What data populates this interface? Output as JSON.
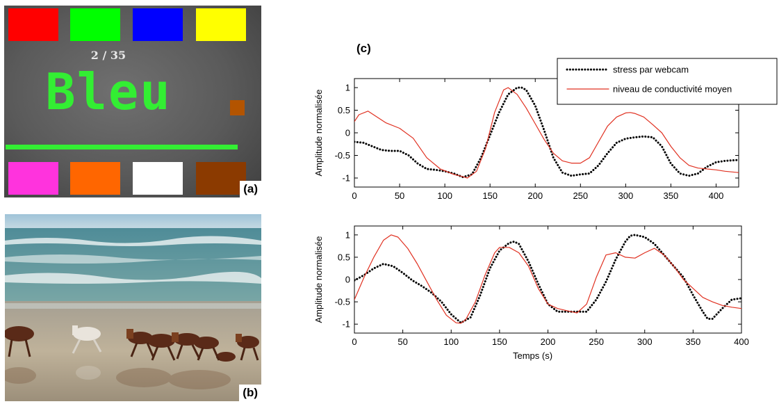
{
  "panel_a": {
    "label": "(a)",
    "counter": "2 / 35",
    "stroop_word": "Bleu",
    "stroop_word_color": "#33ee33",
    "bar_color": "#33ee33",
    "small_square_color": "#b35400",
    "background": "#5e5e5e",
    "top_swatches": [
      "#ff0000",
      "#00ff00",
      "#0000ff",
      "#ffff00"
    ],
    "bottom_swatches": [
      "#ff33dd",
      "#ff6600",
      "#ffffff",
      "#8b3a00"
    ]
  },
  "panel_b": {
    "label": "(b)"
  },
  "panel_c": {
    "label": "(c)"
  },
  "chart_data": [
    {
      "type": "line",
      "title": "",
      "xlabel": "",
      "ylabel": "Amplitude normalisée",
      "xlim": [
        0,
        425
      ],
      "ylim": [
        -1.2,
        1.2
      ],
      "xticks": [
        0,
        50,
        100,
        150,
        200,
        250,
        300,
        350,
        400
      ],
      "yticks": [
        -1,
        -0.5,
        0,
        0.5,
        1
      ],
      "legend_position": "top-right",
      "series": [
        {
          "name": "stress par webcam",
          "color": "#000000",
          "style": "dotted",
          "x": [
            0,
            10,
            20,
            30,
            40,
            50,
            60,
            70,
            80,
            90,
            100,
            110,
            120,
            130,
            140,
            150,
            160,
            170,
            180,
            185,
            190,
            200,
            210,
            220,
            230,
            240,
            250,
            260,
            270,
            280,
            290,
            300,
            310,
            320,
            330,
            340,
            350,
            360,
            370,
            380,
            390,
            400,
            410,
            425
          ],
          "y": [
            -0.2,
            -0.22,
            -0.3,
            -0.38,
            -0.4,
            -0.4,
            -0.5,
            -0.68,
            -0.8,
            -0.82,
            -0.85,
            -0.9,
            -0.98,
            -0.92,
            -0.55,
            -0.05,
            0.45,
            0.85,
            1.0,
            1.0,
            0.95,
            0.6,
            0.05,
            -0.55,
            -0.88,
            -0.95,
            -0.92,
            -0.9,
            -0.72,
            -0.45,
            -0.22,
            -0.13,
            -0.1,
            -0.08,
            -0.1,
            -0.3,
            -0.68,
            -0.9,
            -0.95,
            -0.9,
            -0.75,
            -0.65,
            -0.62,
            -0.6
          ]
        },
        {
          "name": "niveau de conductivité moyen",
          "color": "#e03020",
          "style": "solid",
          "x": [
            0,
            5,
            15,
            25,
            35,
            50,
            65,
            80,
            95,
            110,
            120,
            125,
            135,
            145,
            155,
            165,
            170,
            180,
            190,
            200,
            210,
            220,
            230,
            240,
            250,
            260,
            270,
            280,
            290,
            300,
            305,
            310,
            320,
            330,
            340,
            350,
            360,
            370,
            380,
            390,
            400,
            410,
            425
          ],
          "y": [
            0.25,
            0.4,
            0.48,
            0.35,
            0.22,
            0.1,
            -0.12,
            -0.55,
            -0.8,
            -0.92,
            -0.97,
            -1.0,
            -0.85,
            -0.35,
            0.45,
            0.95,
            1.0,
            0.85,
            0.55,
            0.2,
            -0.15,
            -0.45,
            -0.62,
            -0.67,
            -0.67,
            -0.55,
            -0.2,
            0.15,
            0.35,
            0.44,
            0.45,
            0.43,
            0.35,
            0.18,
            0.0,
            -0.3,
            -0.55,
            -0.72,
            -0.78,
            -0.8,
            -0.82,
            -0.85,
            -0.88
          ]
        }
      ]
    },
    {
      "type": "line",
      "title": "",
      "xlabel": "Temps (s)",
      "ylabel": "Amplitude normalisée",
      "xlim": [
        0,
        400
      ],
      "ylim": [
        -1.2,
        1.2
      ],
      "xticks": [
        0,
        50,
        100,
        150,
        200,
        250,
        300,
        350,
        400
      ],
      "yticks": [
        -1,
        -0.5,
        0,
        0.5,
        1
      ],
      "series": [
        {
          "name": "stress par webcam",
          "color": "#000000",
          "style": "dotted",
          "x": [
            0,
            10,
            20,
            30,
            40,
            50,
            60,
            70,
            80,
            90,
            100,
            110,
            120,
            130,
            140,
            150,
            160,
            165,
            170,
            180,
            190,
            200,
            210,
            220,
            230,
            240,
            250,
            260,
            270,
            280,
            285,
            290,
            300,
            310,
            320,
            330,
            340,
            350,
            360,
            365,
            370,
            380,
            390,
            400
          ],
          "y": [
            -0.02,
            0.1,
            0.25,
            0.35,
            0.3,
            0.15,
            -0.02,
            -0.15,
            -0.3,
            -0.5,
            -0.78,
            -0.97,
            -0.85,
            -0.35,
            0.25,
            0.65,
            0.82,
            0.85,
            0.8,
            0.4,
            -0.1,
            -0.55,
            -0.72,
            -0.72,
            -0.72,
            -0.72,
            -0.45,
            -0.05,
            0.45,
            0.85,
            0.98,
            1.0,
            0.95,
            0.8,
            0.55,
            0.3,
            0.05,
            -0.35,
            -0.72,
            -0.88,
            -0.88,
            -0.65,
            -0.45,
            -0.42
          ]
        },
        {
          "name": "niveau de conductivité moyen",
          "color": "#e03020",
          "style": "solid",
          "x": [
            0,
            10,
            20,
            30,
            38,
            45,
            55,
            65,
            75,
            85,
            95,
            105,
            110,
            115,
            125,
            135,
            145,
            150,
            160,
            170,
            180,
            190,
            200,
            210,
            220,
            230,
            240,
            250,
            260,
            270,
            280,
            290,
            300,
            310,
            320,
            330,
            340,
            350,
            360,
            370,
            380,
            390,
            400
          ],
          "y": [
            -0.45,
            0.05,
            0.5,
            0.88,
            1.0,
            0.95,
            0.7,
            0.35,
            -0.05,
            -0.45,
            -0.8,
            -0.97,
            -0.98,
            -0.9,
            -0.5,
            0.1,
            0.6,
            0.72,
            0.72,
            0.6,
            0.3,
            -0.2,
            -0.55,
            -0.65,
            -0.7,
            -0.75,
            -0.55,
            0.05,
            0.55,
            0.6,
            0.5,
            0.48,
            0.6,
            0.7,
            0.55,
            0.3,
            0.0,
            -0.2,
            -0.4,
            -0.5,
            -0.58,
            -0.62,
            -0.65
          ]
        }
      ]
    }
  ]
}
